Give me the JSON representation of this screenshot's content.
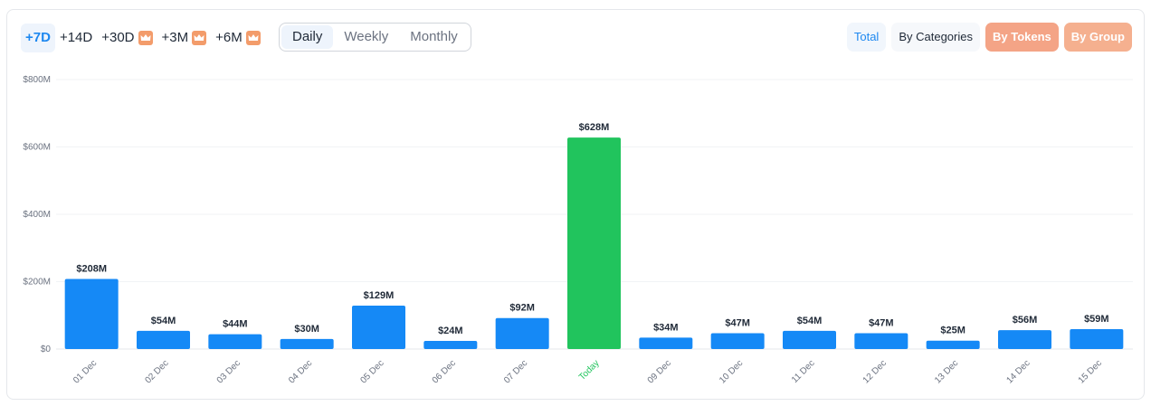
{
  "ranges": [
    {
      "label": "+7D",
      "active": true,
      "premium": false
    },
    {
      "label": "+14D",
      "active": false,
      "premium": false
    },
    {
      "label": "+30D",
      "active": false,
      "premium": true
    },
    {
      "label": "+3M",
      "active": false,
      "premium": true
    },
    {
      "label": "+6M",
      "active": false,
      "premium": true
    }
  ],
  "periods": [
    {
      "label": "Daily",
      "active": true
    },
    {
      "label": "Weekly",
      "active": false
    },
    {
      "label": "Monthly",
      "active": false
    }
  ],
  "views": {
    "total": "Total",
    "by_categories": "By Categories",
    "by_tokens": "By Tokens",
    "by_group": "By Group"
  },
  "colors": {
    "bar": "#1589f6",
    "highlight": "#21c45d",
    "premium": "#f39c6b"
  },
  "chart_data": {
    "type": "bar",
    "categories": [
      "01 Dec",
      "02 Dec",
      "03 Dec",
      "04 Dec",
      "05 Dec",
      "06 Dec",
      "07 Dec",
      "Today",
      "09 Dec",
      "10 Dec",
      "11 Dec",
      "12 Dec",
      "13 Dec",
      "14 Dec",
      "15 Dec"
    ],
    "values": [
      208,
      54,
      44,
      30,
      129,
      24,
      92,
      628,
      34,
      47,
      54,
      47,
      25,
      56,
      59
    ],
    "value_labels": [
      "$208M",
      "$54M",
      "$44M",
      "$30M",
      "$129M",
      "$24M",
      "$92M",
      "$628M",
      "$34M",
      "$47M",
      "$54M",
      "$47M",
      "$25M",
      "$56M",
      "$59M"
    ],
    "highlight_index": 7,
    "yticks": [
      0,
      200,
      400,
      600,
      800
    ],
    "ytick_labels": [
      "$0",
      "$200M",
      "$400M",
      "$600M",
      "$800M"
    ],
    "ylim": [
      0,
      800
    ],
    "grid": true
  }
}
